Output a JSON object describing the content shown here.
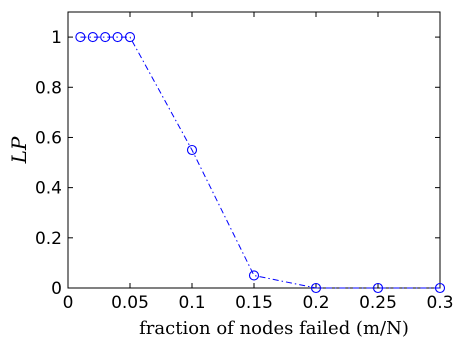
{
  "chart_data": {
    "type": "line",
    "title": "",
    "xlabel": "fraction of nodes failed (m/N)",
    "ylabel": "LP",
    "xlim": [
      0,
      0.3
    ],
    "ylim": [
      0,
      1.1
    ],
    "xticks": [
      "0",
      "0.05",
      "0.1",
      "0.15",
      "0.2",
      "0.25",
      "0.3"
    ],
    "yticks": [
      "0",
      "0.2",
      "0.4",
      "0.6",
      "0.8",
      "1"
    ],
    "grid": false,
    "series": [
      {
        "x": [
          0.01,
          0.02,
          0.03,
          0.04,
          0.05,
          0.1,
          0.15,
          0.2,
          0.25,
          0.3
        ],
        "y": [
          1,
          1,
          1,
          1,
          1,
          0.55,
          0.05,
          0,
          0,
          0
        ],
        "color": "#0000ff",
        "line_style": "dash-dot",
        "marker": "circle"
      }
    ]
  }
}
